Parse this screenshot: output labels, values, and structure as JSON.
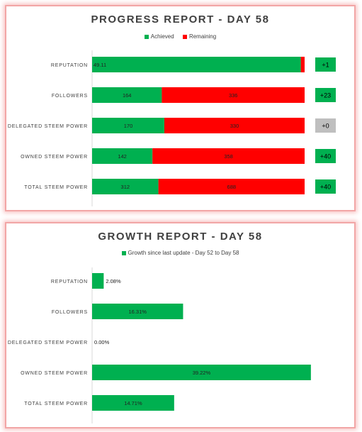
{
  "colors": {
    "achieved": "#00b050",
    "remaining": "#ff0000",
    "neutral": "#bfbfbf",
    "growth": "#00b050"
  },
  "progress_report": {
    "title": "PROGRESS REPORT - DAY 58",
    "legend": [
      "Achieved",
      "Remaining"
    ]
  },
  "growth_report": {
    "title": "GROWTH REPORT - DAY 58",
    "legend": [
      "Growth since last update - Day 52 to Day 58"
    ]
  },
  "chart_data": [
    {
      "type": "bar",
      "orientation": "horizontal",
      "stacked": true,
      "title": "PROGRESS REPORT - DAY 58",
      "legend_position": "top-center",
      "grid": false,
      "categories": [
        "REPUTATION",
        "FOLLOWERS",
        "DELEGATED STEEM POWER",
        "OWNED STEEM POWER",
        "TOTAL STEEM POWER"
      ],
      "series": [
        {
          "name": "Achieved",
          "values": [
            49.11,
            164,
            170,
            142,
            312
          ],
          "labels": [
            "49.11",
            "164",
            "170",
            "142",
            "312"
          ]
        },
        {
          "name": "Remaining",
          "values": [
            0.89,
            336,
            330,
            358,
            688
          ],
          "labels": [
            "",
            "336",
            "330",
            "358",
            "688"
          ]
        }
      ],
      "scale_max": [
        50,
        500,
        500,
        500,
        1000
      ],
      "deltas": [
        "+1",
        "+23",
        "+0",
        "+40",
        "+40"
      ],
      "delta_colors": [
        "achieved",
        "achieved",
        "neutral",
        "achieved",
        "achieved"
      ]
    },
    {
      "type": "bar",
      "orientation": "horizontal",
      "title": "GROWTH REPORT - DAY 58",
      "legend_position": "top-center",
      "grid": false,
      "categories": [
        "REPUTATION",
        "FOLLOWERS",
        "DELEGATED STEEM POWER",
        "OWNED STEEM POWER",
        "TOTAL STEEM POWER"
      ],
      "series": [
        {
          "name": "Growth since last update - Day 52 to Day 58",
          "values": [
            2.08,
            16.31,
            0.0,
            39.22,
            14.71
          ],
          "labels": [
            "2.08%",
            "16.31%",
            "0.00%",
            "39.22%",
            "14.71%"
          ]
        }
      ],
      "xlim": [
        0,
        40
      ]
    }
  ]
}
